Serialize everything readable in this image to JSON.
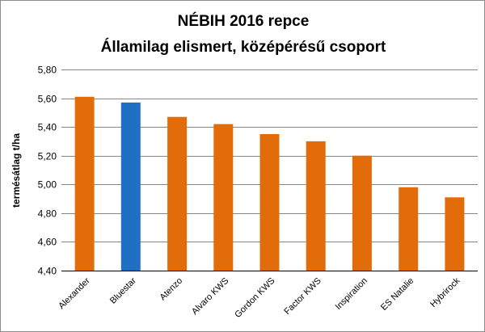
{
  "chart_data": {
    "type": "bar",
    "title_lines": [
      "NÉBIH 2016 repce",
      "Államilag elismert, középérésű csoport"
    ],
    "ylabel": "termésátlag t/ha",
    "xlabel": "",
    "ylim": [
      4.4,
      5.8
    ],
    "yticks": [
      4.4,
      4.6,
      4.8,
      5.0,
      5.2,
      5.4,
      5.6,
      5.8
    ],
    "ytick_labels": [
      "4,40",
      "4,60",
      "4,80",
      "5,00",
      "5,20",
      "5,40",
      "5,60",
      "5,80"
    ],
    "categories": [
      "Alexander",
      "Bluestar",
      "Atenzo",
      "Alvaro KWS",
      "Gordon KWS",
      "Factor KWS",
      "Inspiration",
      "ES Natalie",
      "Hybrirock"
    ],
    "values": [
      5.61,
      5.57,
      5.47,
      5.42,
      5.35,
      5.3,
      5.2,
      4.98,
      4.91
    ],
    "bar_colors": [
      "#E36C0A",
      "#1F6FC5",
      "#E36C0A",
      "#E36C0A",
      "#E36C0A",
      "#E36C0A",
      "#E36C0A",
      "#E36C0A",
      "#E36C0A"
    ],
    "grid": true,
    "grid_color": "#878787",
    "legend": "none"
  }
}
